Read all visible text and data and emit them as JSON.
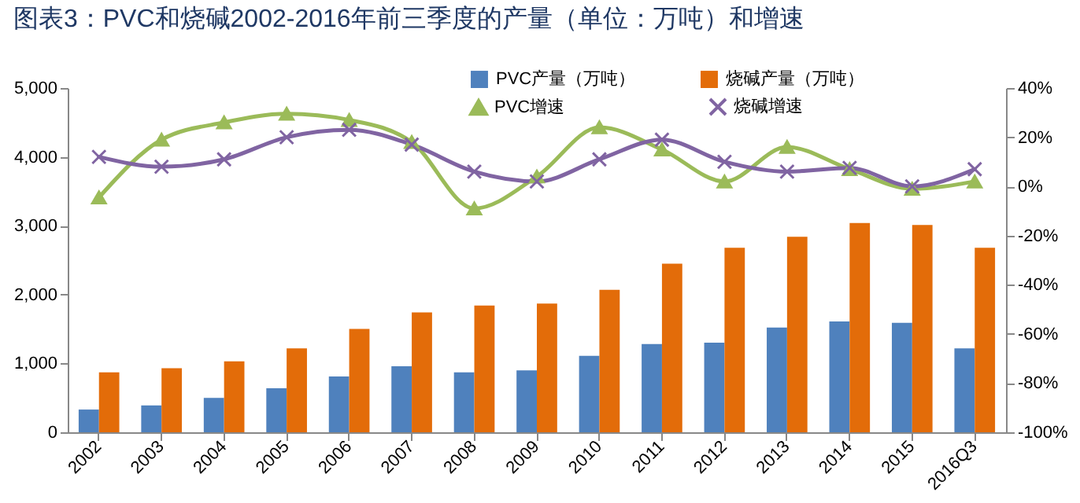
{
  "chart_data": {
    "type": "bar",
    "title": "图表3：PVC和烧碱2002-2016年前三季度的产量（单位：万吨）和增速",
    "categories": [
      "2002",
      "2003",
      "2004",
      "2005",
      "2006",
      "2007",
      "2008",
      "2009",
      "2010",
      "2011",
      "2012",
      "2013",
      "2014",
      "2015",
      "2016Q3"
    ],
    "series": [
      {
        "name": "PVC产量（万吨）",
        "color": "#4f81bd",
        "values": [
          330,
          390,
          500,
          640,
          810,
          960,
          870,
          900,
          1110,
          1280,
          1300,
          1520,
          1610,
          1590,
          1220
        ]
      },
      {
        "name": "烧碱产量（万吨）",
        "color": "#e36c09",
        "values": [
          870,
          930,
          1030,
          1220,
          1500,
          1740,
          1840,
          1870,
          2070,
          2450,
          2680,
          2840,
          3040,
          3010,
          2680
        ]
      },
      {
        "name": "PVC增速",
        "type": "line",
        "axis": "y2",
        "marker": "triangle",
        "color": "#9bbb59",
        "values": [
          -4.5,
          19,
          26,
          29.5,
          27,
          18,
          -9,
          4,
          24,
          15,
          2,
          16,
          7,
          -1,
          2
        ]
      },
      {
        "name": "烧碱增速",
        "type": "line",
        "axis": "y2",
        "marker": "cross",
        "color": "#8064a2",
        "values": [
          12,
          8,
          11,
          20,
          23,
          17,
          6,
          2,
          11,
          19,
          10,
          6,
          7.5,
          0,
          7
        ]
      }
    ],
    "ylim": [
      0,
      5000
    ],
    "yticks": [
      0,
      {
        "value": 1000,
        "label": "1,000"
      },
      {
        "value": 2000,
        "label": "2,000"
      },
      {
        "value": 3000,
        "label": "3,000"
      },
      {
        "value": 4000,
        "label": "4,000"
      },
      {
        "value": 5000,
        "label": "5,000"
      }
    ],
    "y2lim": [
      -100,
      40
    ],
    "y2ticks": [
      {
        "value": -100,
        "label": "-100%"
      },
      {
        "value": -80,
        "label": "-80%"
      },
      {
        "value": -60,
        "label": "-60%"
      },
      {
        "value": -40,
        "label": "-40%"
      },
      {
        "value": -20,
        "label": "-20%"
      },
      {
        "value": 0,
        "label": "0%"
      },
      {
        "value": 20,
        "label": "20%"
      },
      {
        "value": 40,
        "label": "40%"
      }
    ],
    "legend": "top"
  }
}
